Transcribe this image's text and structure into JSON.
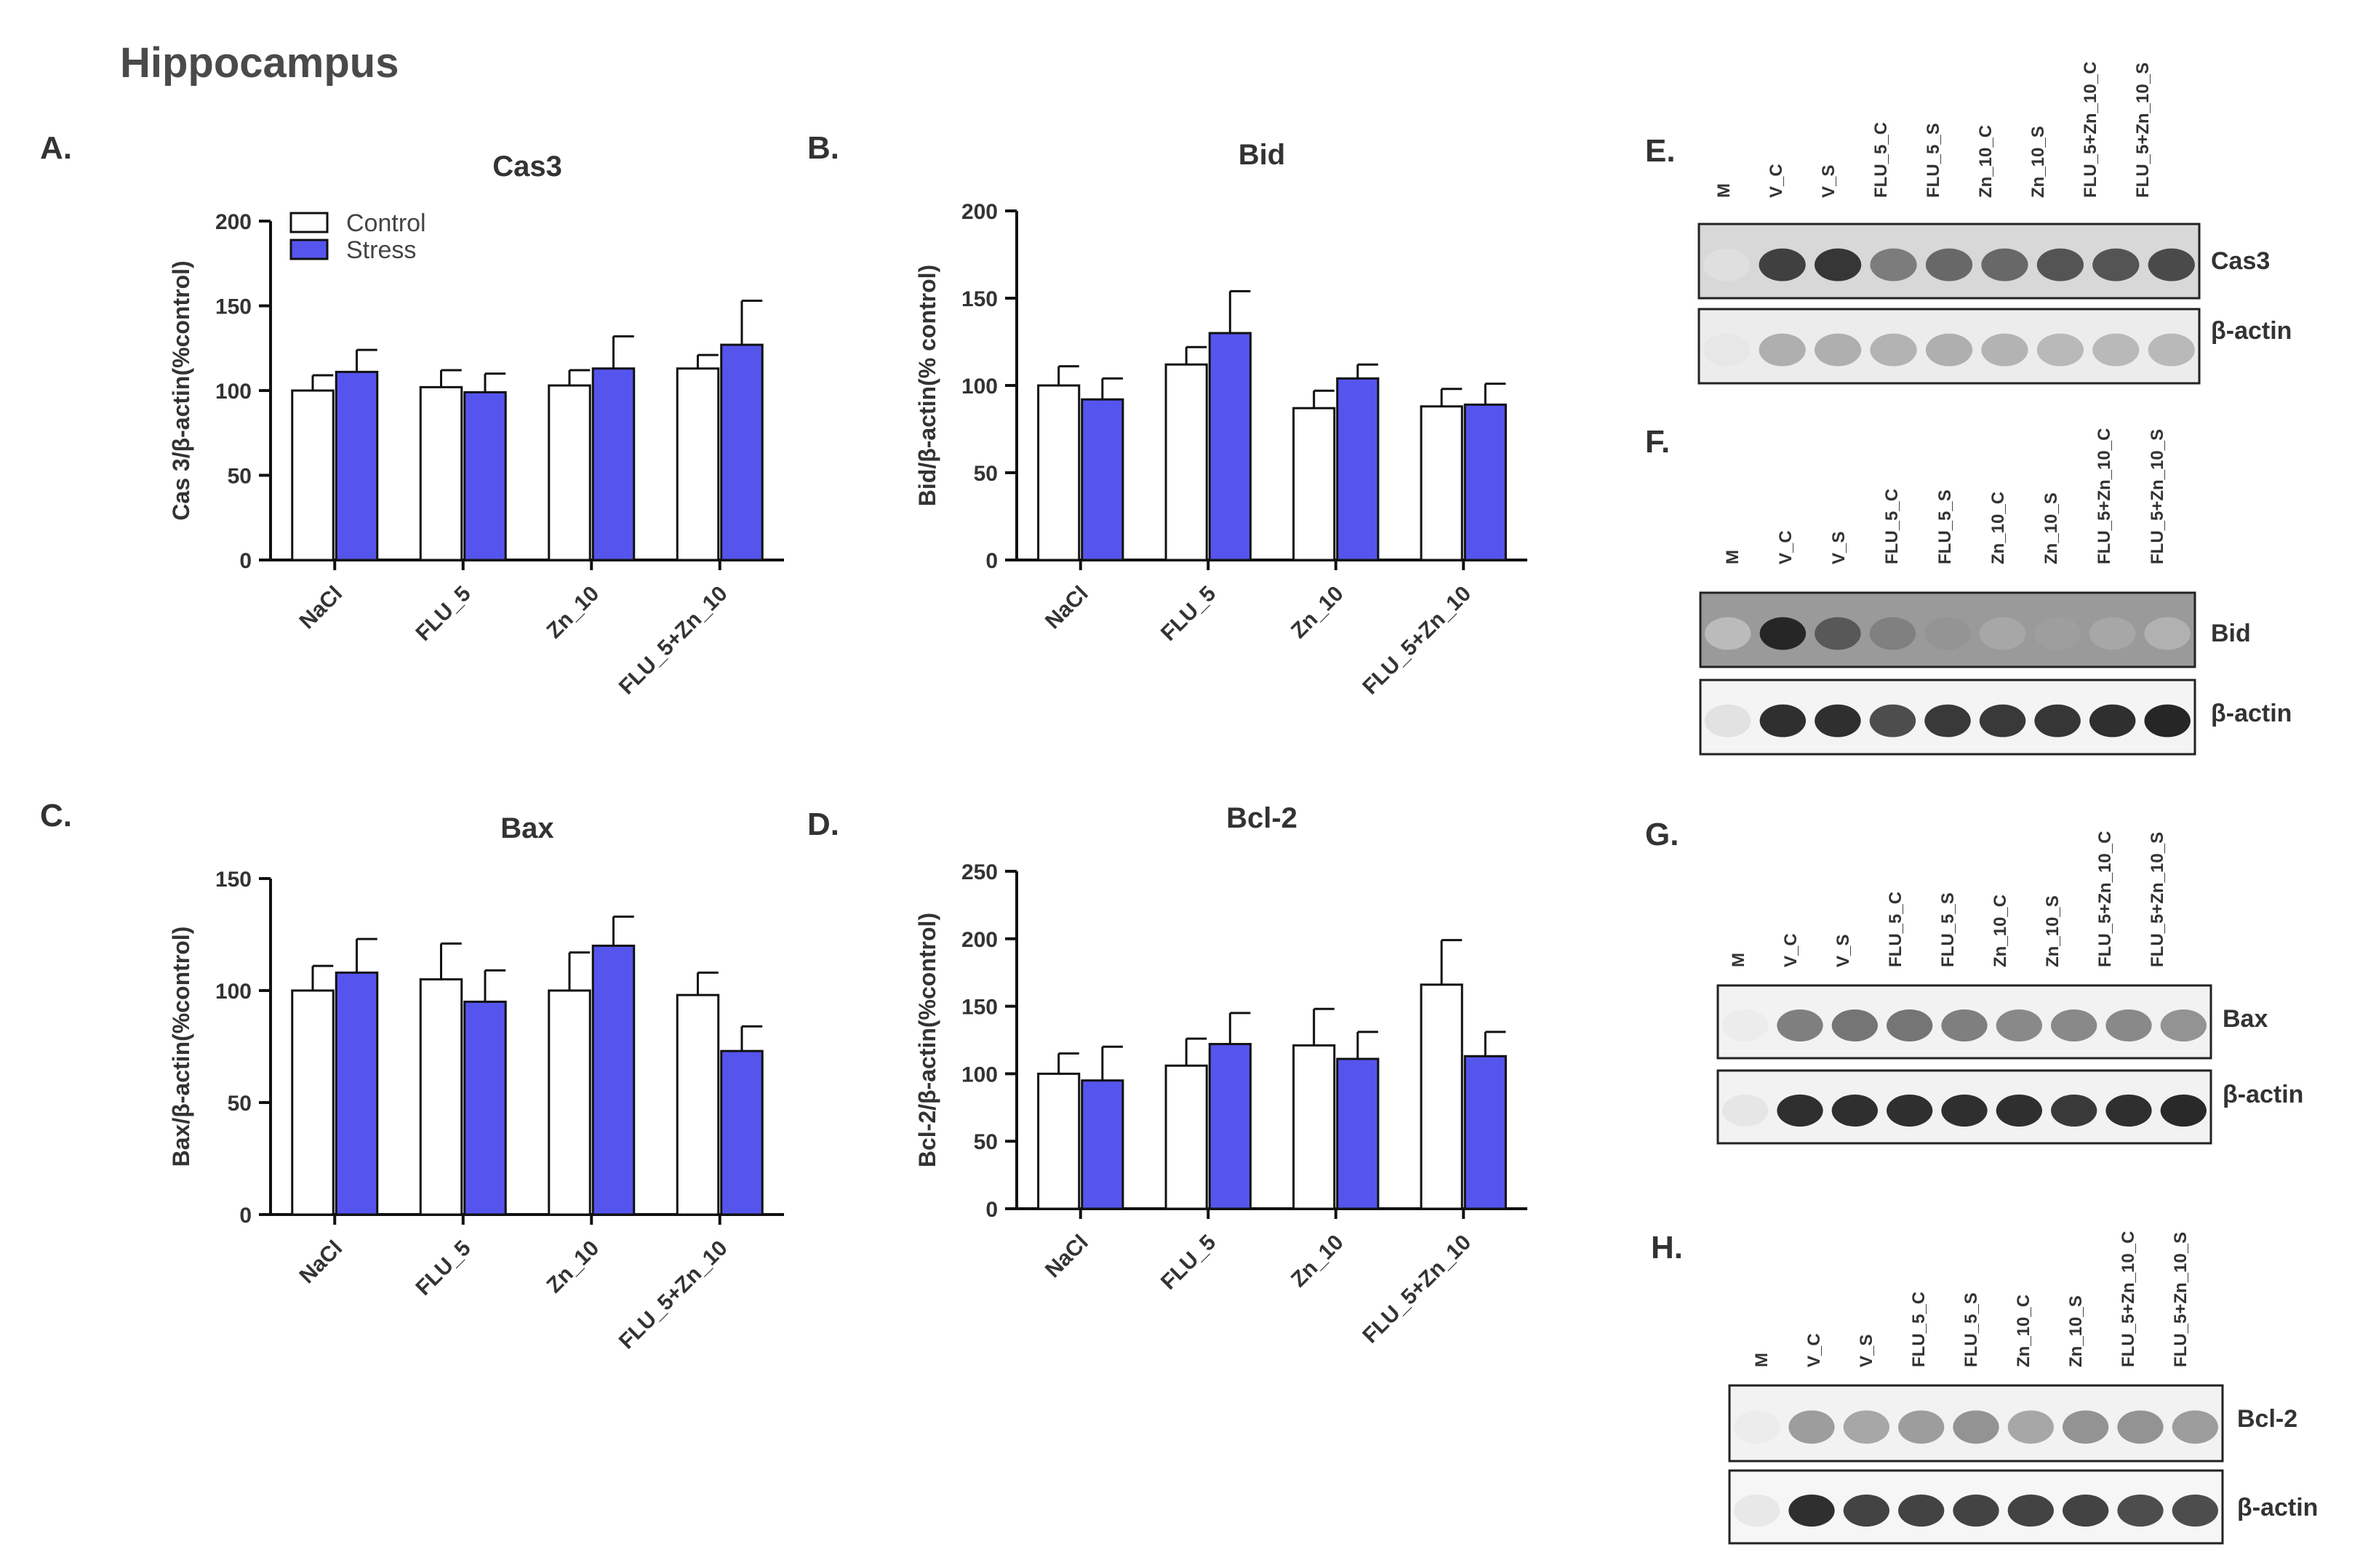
{
  "page": {
    "title": "Hippocampus"
  },
  "colors": {
    "control_fill": "#ffffff",
    "stress_fill": "#5555ee",
    "axis": "#111111"
  },
  "legend": {
    "control": "Control",
    "stress": "Stress"
  },
  "chart_data": [
    {
      "panel": "A.",
      "type": "bar",
      "title": "Cas3",
      "ylabel": "Cas 3/β-actin(%control)",
      "xlabel": "",
      "ylim": [
        0,
        200
      ],
      "yticks": [
        0,
        50,
        100,
        150,
        200
      ],
      "categories": [
        "NaCl",
        "FLU_5",
        "Zn_10",
        "FLU_5+Zn_10"
      ],
      "series": [
        {
          "name": "Control",
          "values": [
            100,
            102,
            103,
            113
          ],
          "errors": [
            9,
            10,
            9,
            8
          ]
        },
        {
          "name": "Stress",
          "values": [
            111,
            99,
            113,
            127
          ],
          "errors": [
            13,
            11,
            19,
            26
          ]
        }
      ],
      "legend_position": "top-left"
    },
    {
      "panel": "B.",
      "type": "bar",
      "title": "Bid",
      "ylabel": "Bid/β-actin(% control)",
      "xlabel": "",
      "ylim": [
        0,
        200
      ],
      "yticks": [
        0,
        50,
        100,
        150,
        200
      ],
      "categories": [
        "NaCl",
        "FLU_5",
        "Zn_10",
        "FLU_5+Zn_10"
      ],
      "series": [
        {
          "name": "Control",
          "values": [
            100,
            112,
            87,
            88
          ],
          "errors": [
            11,
            10,
            10,
            10
          ]
        },
        {
          "name": "Stress",
          "values": [
            92,
            130,
            104,
            89
          ],
          "errors": [
            12,
            24,
            8,
            12
          ]
        }
      ]
    },
    {
      "panel": "C.",
      "type": "bar",
      "title": "Bax",
      "ylabel": "Bax/β-actin(%control)",
      "xlabel": "",
      "ylim": [
        0,
        150
      ],
      "yticks": [
        0,
        50,
        100,
        150
      ],
      "categories": [
        "NaCl",
        "FLU_5",
        "Zn_10",
        "FLU_5+Zn_10"
      ],
      "series": [
        {
          "name": "Control",
          "values": [
            100,
            105,
            100,
            98
          ],
          "errors": [
            11,
            16,
            17,
            10
          ]
        },
        {
          "name": "Stress",
          "values": [
            108,
            95,
            120,
            73
          ],
          "errors": [
            15,
            14,
            13,
            11
          ]
        }
      ]
    },
    {
      "panel": "D.",
      "type": "bar",
      "title": "Bcl-2",
      "ylabel": "Bcl-2/β-actin(%control)",
      "xlabel": "",
      "ylim": [
        0,
        250
      ],
      "yticks": [
        0,
        50,
        100,
        150,
        200,
        250
      ],
      "categories": [
        "NaCl",
        "FLU_5",
        "Zn_10",
        "FLU_5+Zn_10"
      ],
      "series": [
        {
          "name": "Control",
          "values": [
            100,
            106,
            121,
            166
          ],
          "errors": [
            15,
            20,
            27,
            33
          ]
        },
        {
          "name": "Stress",
          "values": [
            95,
            122,
            111,
            113
          ],
          "errors": [
            25,
            23,
            20,
            18
          ]
        }
      ]
    }
  ],
  "blots": [
    {
      "panel": "E.",
      "lanes": [
        "M",
        "V_C",
        "V_S",
        "FLU_5_C",
        "FLU_5_S",
        "Zn_10_C",
        "Zn_10_S",
        "FLU_5+Zn_10_C",
        "FLU_5+Zn_10_S"
      ],
      "target": "Cas3",
      "loading": "β-actin"
    },
    {
      "panel": "F.",
      "lanes": [
        "M",
        "V_C",
        "V_S",
        "FLU_5_C",
        "FLU_5_S",
        "Zn_10_C",
        "Zn_10_S",
        "FLU_5+Zn_10_C",
        "FLU_5+Zn_10_S"
      ],
      "target": "Bid",
      "loading": "β-actin"
    },
    {
      "panel": "G.",
      "lanes": [
        "M",
        "V_C",
        "V_S",
        "FLU_5_C",
        "FLU_5_S",
        "Zn_10_C",
        "Zn_10_S",
        "FLU_5+Zn_10_C",
        "FLU_5+Zn_10_S"
      ],
      "target": "Bax",
      "loading": "β-actin"
    },
    {
      "panel": "H.",
      "lanes": [
        "M",
        "V_C",
        "V_S",
        "FLU_5_C",
        "FLU_5_S",
        "Zn_10_C",
        "Zn_10_S",
        "FLU_5+Zn_10_C",
        "FLU_5+Zn_10_S"
      ],
      "target": "Bcl-2",
      "loading": "β-actin"
    }
  ]
}
